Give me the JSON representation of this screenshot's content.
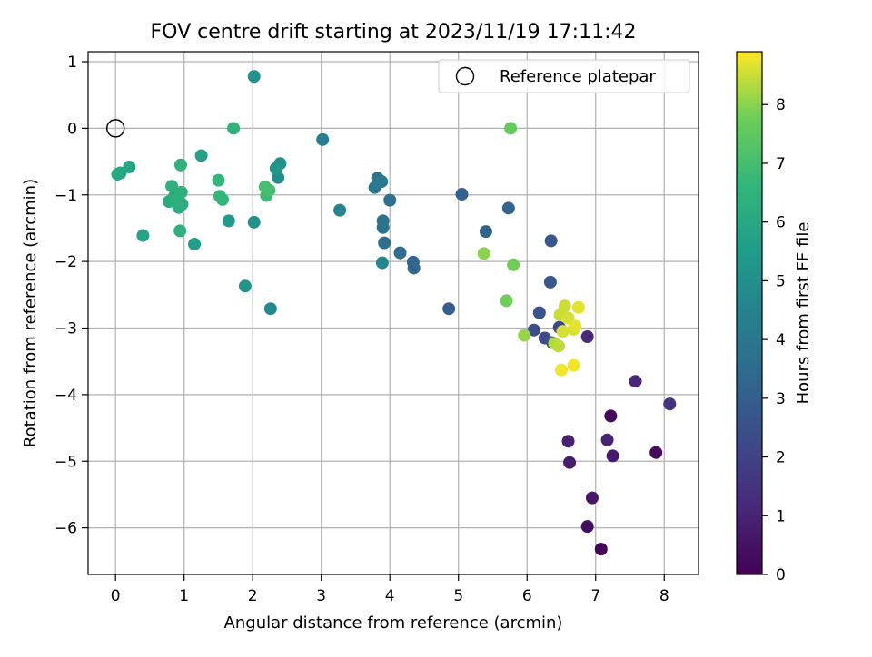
{
  "chart_data": {
    "type": "scatter",
    "title": "FOV centre drift starting at 2023/11/19 17:11:42",
    "xlabel": "Angular distance from reference (arcmin)",
    "ylabel": "Rotation from reference (arcmin)",
    "colorbar_label": "Hours from first FF file",
    "xlim": [
      -0.4,
      8.5
    ],
    "ylim": [
      -6.7,
      1.15
    ],
    "clim": [
      0,
      8.9
    ],
    "x_ticks": [
      0,
      1,
      2,
      3,
      4,
      5,
      6,
      7,
      8
    ],
    "x_tick_labels": [
      "0",
      "1",
      "2",
      "3",
      "4",
      "5",
      "6",
      "7",
      "8"
    ],
    "y_ticks": [
      1,
      0,
      -1,
      -2,
      -3,
      -4,
      -5,
      -6
    ],
    "y_tick_labels": [
      "1",
      "0",
      "−1",
      "−2",
      "−3",
      "−4",
      "−5",
      "−6"
    ],
    "c_ticks": [
      0,
      1,
      2,
      3,
      4,
      5,
      6,
      7,
      8
    ],
    "c_tick_labels": [
      "0",
      "1",
      "2",
      "3",
      "4",
      "5",
      "6",
      "7",
      "8"
    ],
    "grid": true,
    "legend_position": "top-right",
    "legend_entries": [
      "Reference platepar"
    ],
    "colormap": "viridis",
    "reference_point": {
      "x": 0,
      "y": 0
    },
    "points": [
      {
        "x": 7.08,
        "y": -6.32,
        "c": 0.1
      },
      {
        "x": 7.22,
        "y": -4.32,
        "c": 0.2
      },
      {
        "x": 7.88,
        "y": -4.87,
        "c": 0.3
      },
      {
        "x": 6.88,
        "y": -5.98,
        "c": 0.4
      },
      {
        "x": 6.95,
        "y": -5.55,
        "c": 0.6
      },
      {
        "x": 7.25,
        "y": -4.92,
        "c": 0.7
      },
      {
        "x": 6.62,
        "y": -5.02,
        "c": 0.8
      },
      {
        "x": 6.6,
        "y": -4.7,
        "c": 0.9
      },
      {
        "x": 7.17,
        "y": -4.68,
        "c": 1.0
      },
      {
        "x": 7.58,
        "y": -3.8,
        "c": 1.1
      },
      {
        "x": 6.88,
        "y": -3.13,
        "c": 1.2
      },
      {
        "x": 8.08,
        "y": -4.14,
        "c": 1.4
      },
      {
        "x": 6.47,
        "y": -2.99,
        "c": 2.2
      },
      {
        "x": 6.26,
        "y": -3.15,
        "c": 2.3
      },
      {
        "x": 6.1,
        "y": -3.03,
        "c": 2.4
      },
      {
        "x": 6.37,
        "y": -3.22,
        "c": 2.5
      },
      {
        "x": 6.18,
        "y": -2.77,
        "c": 2.6
      },
      {
        "x": 6.35,
        "y": -1.69,
        "c": 2.7
      },
      {
        "x": 6.34,
        "y": -2.31,
        "c": 2.8
      },
      {
        "x": 4.86,
        "y": -2.71,
        "c": 3.0
      },
      {
        "x": 5.05,
        "y": -0.99,
        "c": 3.1
      },
      {
        "x": 5.4,
        "y": -1.55,
        "c": 3.2
      },
      {
        "x": 5.73,
        "y": -1.2,
        "c": 3.3
      },
      {
        "x": 4.34,
        "y": -2.01,
        "c": 3.3
      },
      {
        "x": 4.35,
        "y": -2.1,
        "c": 3.4
      },
      {
        "x": 4.15,
        "y": -1.87,
        "c": 3.5
      },
      {
        "x": 3.92,
        "y": -1.72,
        "c": 3.6
      },
      {
        "x": 4.0,
        "y": -1.08,
        "c": 3.7
      },
      {
        "x": 3.9,
        "y": -1.39,
        "c": 3.8
      },
      {
        "x": 3.9,
        "y": -1.49,
        "c": 3.8
      },
      {
        "x": 3.82,
        "y": -0.75,
        "c": 3.9
      },
      {
        "x": 3.78,
        "y": -0.89,
        "c": 4.0
      },
      {
        "x": 3.88,
        "y": -0.8,
        "c": 4.1
      },
      {
        "x": 3.02,
        "y": -0.17,
        "c": 4.3
      },
      {
        "x": 3.27,
        "y": -1.23,
        "c": 4.5
      },
      {
        "x": 3.89,
        "y": -2.02,
        "c": 4.6
      },
      {
        "x": 2.26,
        "y": -2.71,
        "c": 4.8
      },
      {
        "x": 2.37,
        "y": -0.74,
        "c": 4.9
      },
      {
        "x": 2.4,
        "y": -0.53,
        "c": 5.0
      },
      {
        "x": 2.02,
        "y": 0.78,
        "c": 5.1
      },
      {
        "x": 2.02,
        "y": -1.41,
        "c": 5.1
      },
      {
        "x": 2.34,
        "y": -0.6,
        "c": 5.3
      },
      {
        "x": 1.89,
        "y": -2.37,
        "c": 5.2
      },
      {
        "x": 1.65,
        "y": -1.39,
        "c": 5.4
      },
      {
        "x": 1.15,
        "y": -1.74,
        "c": 5.6
      },
      {
        "x": 1.25,
        "y": -0.41,
        "c": 5.7
      },
      {
        "x": 0.4,
        "y": -1.61,
        "c": 5.8
      },
      {
        "x": 0.2,
        "y": -0.58,
        "c": 5.9
      },
      {
        "x": 0.07,
        "y": -0.67,
        "c": 5.9
      },
      {
        "x": 0.03,
        "y": -0.69,
        "c": 6.0
      },
      {
        "x": 0.78,
        "y": -1.1,
        "c": 6.1
      },
      {
        "x": 0.86,
        "y": -1.02,
        "c": 6.1
      },
      {
        "x": 0.92,
        "y": -1.19,
        "c": 6.2
      },
      {
        "x": 0.97,
        "y": -1.14,
        "c": 6.2
      },
      {
        "x": 0.88,
        "y": -1.09,
        "c": 6.3
      },
      {
        "x": 0.96,
        "y": -0.96,
        "c": 6.3
      },
      {
        "x": 0.82,
        "y": -0.87,
        "c": 6.3
      },
      {
        "x": 0.94,
        "y": -1.54,
        "c": 6.4
      },
      {
        "x": 0.95,
        "y": -0.55,
        "c": 6.4
      },
      {
        "x": 1.72,
        "y": 0.0,
        "c": 6.4
      },
      {
        "x": 1.5,
        "y": -0.78,
        "c": 6.6
      },
      {
        "x": 1.52,
        "y": -1.02,
        "c": 6.6
      },
      {
        "x": 1.56,
        "y": -1.07,
        "c": 6.6
      },
      {
        "x": 2.2,
        "y": -1.01,
        "c": 6.8
      },
      {
        "x": 2.18,
        "y": -0.88,
        "c": 7.0
      },
      {
        "x": 2.24,
        "y": -0.93,
        "c": 7.0
      },
      {
        "x": 5.76,
        "y": 0.0,
        "c": 7.6
      },
      {
        "x": 5.7,
        "y": -2.59,
        "c": 7.8
      },
      {
        "x": 5.8,
        "y": -2.05,
        "c": 7.8
      },
      {
        "x": 5.37,
        "y": -1.88,
        "c": 8.0
      },
      {
        "x": 5.96,
        "y": -3.11,
        "c": 8.1
      },
      {
        "x": 6.4,
        "y": -3.23,
        "c": 8.3
      },
      {
        "x": 6.46,
        "y": -3.27,
        "c": 8.4
      },
      {
        "x": 6.55,
        "y": -2.67,
        "c": 8.5
      },
      {
        "x": 6.48,
        "y": -2.8,
        "c": 8.5
      },
      {
        "x": 6.52,
        "y": -3.05,
        "c": 8.6
      },
      {
        "x": 6.68,
        "y": -3.02,
        "c": 8.6
      },
      {
        "x": 6.6,
        "y": -2.85,
        "c": 8.6
      },
      {
        "x": 6.75,
        "y": -2.69,
        "c": 8.7
      },
      {
        "x": 6.7,
        "y": -2.97,
        "c": 8.7
      },
      {
        "x": 6.5,
        "y": -3.63,
        "c": 8.8
      },
      {
        "x": 6.68,
        "y": -3.56,
        "c": 8.8
      }
    ]
  }
}
